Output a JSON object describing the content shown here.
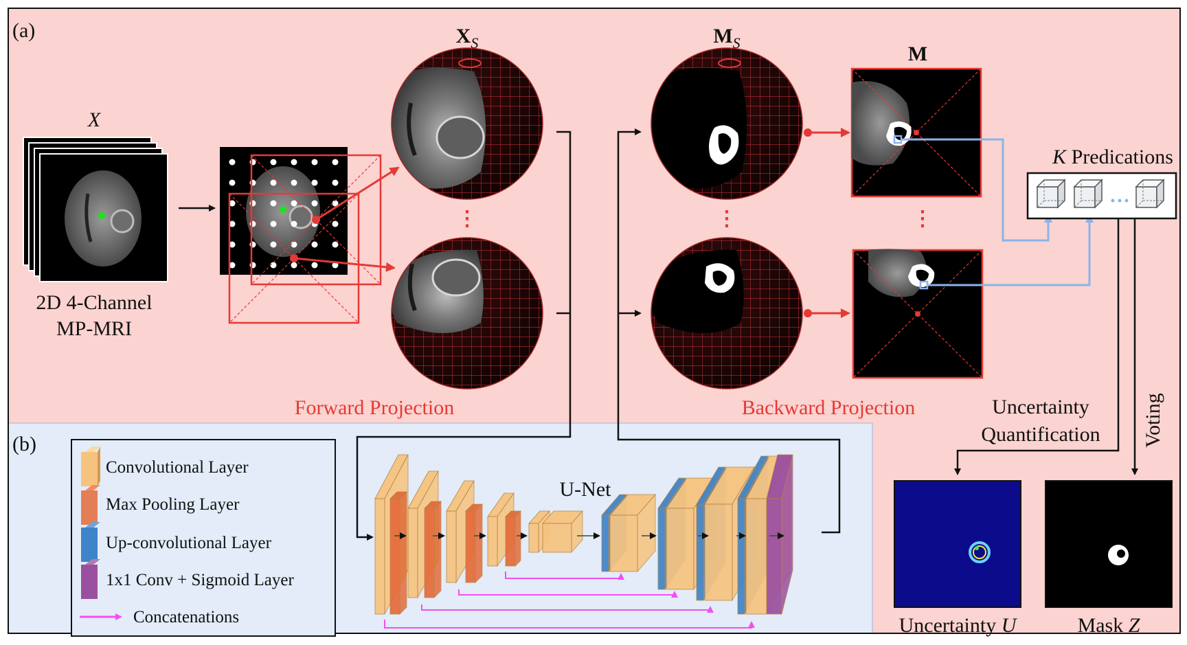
{
  "panel_a": {
    "label": "(a)"
  },
  "panel_b": {
    "label": "(b)"
  },
  "input": {
    "var": "X",
    "caption_line1": "2D 4-Channel",
    "caption_line2": "MP-MRI"
  },
  "xs": {
    "main": "X",
    "sub": "S"
  },
  "ms": {
    "main": "M",
    "sub": "S"
  },
  "m": {
    "main": "M"
  },
  "forward_projection": "Forward Projection",
  "backward_projection": "Backward Projection",
  "k_pred": {
    "var": "K",
    "text": " Predications"
  },
  "uq": {
    "line1": "Uncertainty",
    "line2": "Quantification"
  },
  "voting": "Voting",
  "unet": "U-Net",
  "uncertainty_out": {
    "text": "Uncertainty ",
    "var": "U"
  },
  "mask_out": {
    "text": "Mask ",
    "var": "Z"
  },
  "legend": {
    "conv": "Convolutional Layer",
    "pool": "Max Pooling Layer",
    "upconv": "Up-convolutional Layer",
    "sig": "1x1 Conv + Sigmoid Layer",
    "concat": "Concatenations"
  },
  "colors": {
    "panel_a_bg": "#fbd3d0",
    "panel_b_bg": "#e3ecf8",
    "red_accent": "#e53935",
    "conv": "#f6c37f",
    "pool": "#e46b3a",
    "upconv": "#3f84c9",
    "sigmoid": "#9b4fa0",
    "concat": "#f24ff2",
    "link_blue": "#8ab4ea"
  }
}
